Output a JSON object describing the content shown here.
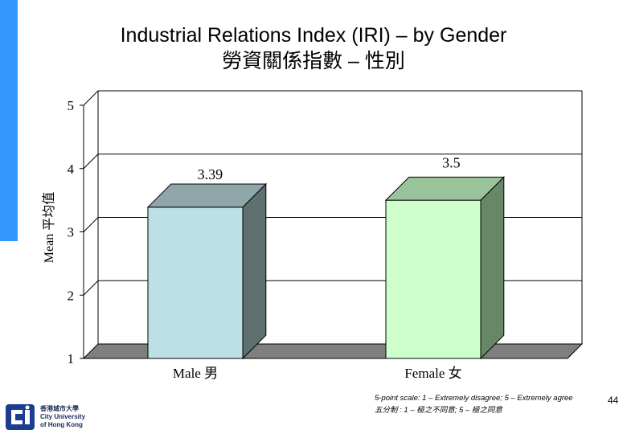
{
  "colors": {
    "accent": "#3399ff",
    "male_front": "#bde0e6",
    "male_side": "#5f7070",
    "male_top": "#8fa6aa",
    "female_front": "#ccffcc",
    "female_side": "#668866",
    "female_top": "#99c499",
    "floor": "#7f7f7f"
  },
  "title": {
    "line1": "Industrial Relations Index (IRI) – by Gender",
    "line2": "勞資關係指數 – 性別"
  },
  "footnote": {
    "line1": "5-point scale: 1 – Extremely disagree; 5 – Extremely agree",
    "line2": "五分制 : 1 – 極之不同意; 5 – 極之同意"
  },
  "page_number": "44",
  "logo": {
    "icon": "city-university-logo-icon",
    "line1": "香港城市大學",
    "line2": "City University",
    "line3": "of Hong Kong"
  },
  "chart_data": {
    "type": "bar",
    "categories": [
      "Male 男",
      "Female 女"
    ],
    "values": [
      3.39,
      3.5
    ],
    "data_labels": [
      "3.39",
      "3.5"
    ],
    "ylabel": "Mean 平均值",
    "ylim": [
      1,
      5
    ],
    "yticks": [
      "1",
      "2",
      "3",
      "4",
      "5"
    ],
    "grid": true,
    "legend": "none",
    "style": "3d"
  }
}
